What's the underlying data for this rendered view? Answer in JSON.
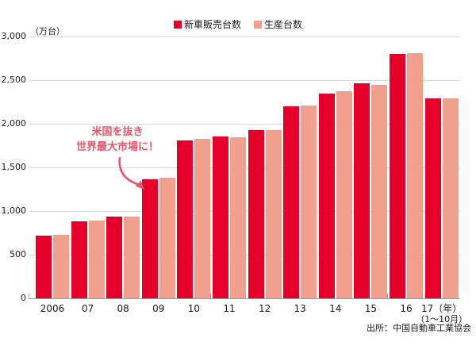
{
  "colors": {
    "sales": "#e60029",
    "production": "#f2a08e",
    "annotation": "#e8566a",
    "grid": "#dcdcdc",
    "axis": "#9a9a9a",
    "text": "#1a1a1a"
  },
  "y_axis": {
    "unit_label": "（万台）",
    "ticks": [
      "0",
      "500",
      "1,000",
      "1,500",
      "2,000",
      "2,500",
      "3,000"
    ]
  },
  "source_note": "出所：中国自動車工業協会",
  "chart_data": {
    "type": "bar",
    "title": "",
    "ylabel": "（万台）",
    "xlabel": "",
    "ylim": [
      0,
      3000
    ],
    "y_tick_step": 500,
    "grid": true,
    "legend_position": "top-center",
    "categories": [
      "2006",
      "07",
      "08",
      "09",
      "10",
      "11",
      "12",
      "13",
      "14",
      "15",
      "16",
      "17（年）"
    ],
    "x_last_sublabel": "（1～10月）",
    "series": [
      {
        "name": "新車販売台数",
        "color": "#e60029",
        "values": [
          722,
          879,
          938,
          1364,
          1806,
          1851,
          1931,
          2198,
          2349,
          2460,
          2803,
          2292
        ]
      },
      {
        "name": "生産台数",
        "color": "#f2a08e",
        "values": [
          728,
          888,
          935,
          1379,
          1826,
          1842,
          1927,
          2212,
          2372,
          2450,
          2812,
          2295
        ]
      }
    ],
    "annotation": {
      "line1": "米国を抜き",
      "line2": "世界最大市場に！",
      "target_category": "09"
    }
  }
}
